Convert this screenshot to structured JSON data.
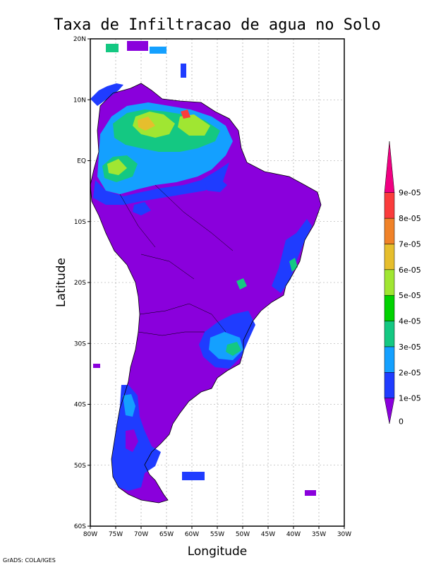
{
  "title": "Taxa de Infiltracao de agua no Solo",
  "xlabel": "Longitude",
  "ylabel": "Latitude",
  "credit": "GrADS: COLA/IGES",
  "x_ticks": [
    "80W",
    "75W",
    "70W",
    "65W",
    "60W",
    "55W",
    "50W",
    "45W",
    "40W",
    "35W",
    "30W"
  ],
  "y_ticks": [
    "20N",
    "10N",
    "EQ",
    "10S",
    "20S",
    "30S",
    "40S",
    "50S",
    "60S"
  ],
  "colorbar": {
    "labels": [
      "0",
      "1e-05",
      "2e-05",
      "3e-05",
      "4e-05",
      "5e-05",
      "6e-05",
      "7e-05",
      "8e-05",
      "9e-05"
    ],
    "colors": [
      "#8a00dc",
      "#1f3cff",
      "#14a0ff",
      "#14c882",
      "#00d200",
      "#a0e632",
      "#e6be2d",
      "#f08228",
      "#fa3c3c",
      "#f00082"
    ]
  },
  "chart_data": {
    "type": "heatmap",
    "title": "Taxa de Infiltracao de agua no Solo",
    "xlabel": "Longitude",
    "ylabel": "Latitude",
    "xlim": [
      -80,
      -30
    ],
    "ylim": [
      -60,
      20
    ],
    "grid": true,
    "legend_position": "right",
    "regions": [
      {
        "lon": -62,
        "lat": 7,
        "level": 8
      },
      {
        "lon": -68,
        "lat": 5,
        "level": 6
      },
      {
        "lon": -73,
        "lat": 0,
        "level": 5
      },
      {
        "lon": -67,
        "lat": 1,
        "level": 4
      },
      {
        "lon": -58,
        "lat": 5,
        "level": 4
      },
      {
        "lon": -51,
        "lat": -30,
        "level": 3
      },
      {
        "lon": -49,
        "lat": -20,
        "level": 3
      },
      {
        "lon": -56,
        "lat": 5,
        "level": 3
      },
      {
        "lon": -71,
        "lat": -38,
        "level": 2
      },
      {
        "lon": -57,
        "lat": -28,
        "level": 2
      },
      {
        "lon": -62,
        "lat": -51,
        "level": 1
      }
    ]
  }
}
